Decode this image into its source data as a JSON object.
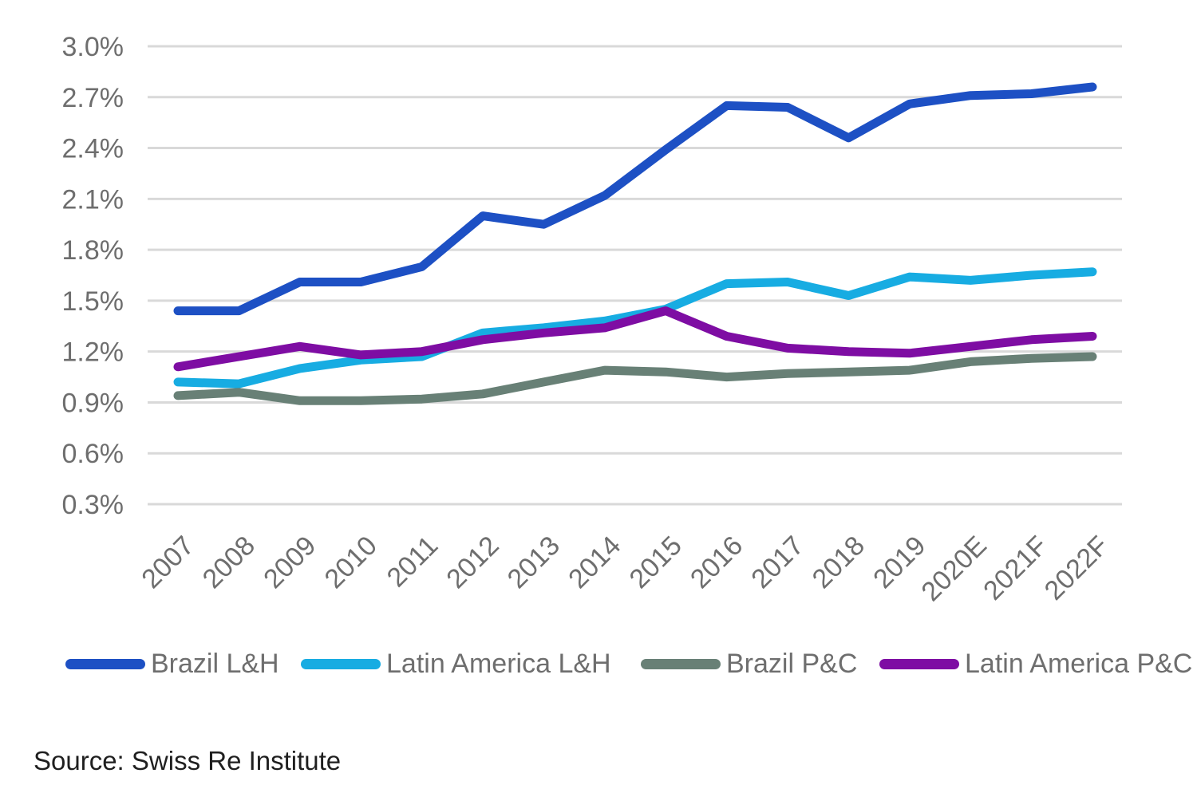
{
  "chart_data": {
    "type": "line",
    "title": "",
    "categories": [
      "2007",
      "2008",
      "2009",
      "2010",
      "2011",
      "2012",
      "2013",
      "2014",
      "2015",
      "2016",
      "2017",
      "2018",
      "2019",
      "2020E",
      "2021F",
      "2022F"
    ],
    "series": [
      {
        "name": "Brazil L&H",
        "color": "#1d50c4",
        "values": [
          1.44,
          1.44,
          1.61,
          1.61,
          1.7,
          2.0,
          1.95,
          2.12,
          2.39,
          2.65,
          2.64,
          2.46,
          2.66,
          2.71,
          2.72,
          2.76
        ]
      },
      {
        "name": "Latin America L&H",
        "color": "#17ace2",
        "values": [
          1.02,
          1.01,
          1.1,
          1.15,
          1.17,
          1.31,
          1.34,
          1.38,
          1.45,
          1.6,
          1.61,
          1.53,
          1.64,
          1.62,
          1.65,
          1.67
        ]
      },
      {
        "name": "Brazil P&C",
        "color": "#688076",
        "values": [
          0.94,
          0.96,
          0.91,
          0.91,
          0.92,
          0.95,
          1.02,
          1.09,
          1.08,
          1.05,
          1.07,
          1.08,
          1.09,
          1.14,
          1.16,
          1.17
        ]
      },
      {
        "name": "Latin America P&C",
        "color": "#7e0da3",
        "values": [
          1.11,
          1.17,
          1.23,
          1.18,
          1.2,
          1.27,
          1.31,
          1.34,
          1.44,
          1.29,
          1.22,
          1.2,
          1.19,
          1.23,
          1.27,
          1.29
        ]
      }
    ],
    "y_axis": {
      "min": 0.3,
      "max": 3.0,
      "step": 0.3,
      "unit": "%",
      "tick_labels": [
        "3.0%",
        "2.7%",
        "2.4%",
        "2.1%",
        "1.8%",
        "1.5%",
        "1.2%",
        "0.9%",
        "0.6%",
        "0.3%"
      ]
    },
    "grid": "horizontal",
    "gridline_color": "#d9d9d9",
    "axis_text_color": "#6e6e6e",
    "legend_position": "bottom"
  },
  "source_note": "Source: Swiss Re Institute"
}
